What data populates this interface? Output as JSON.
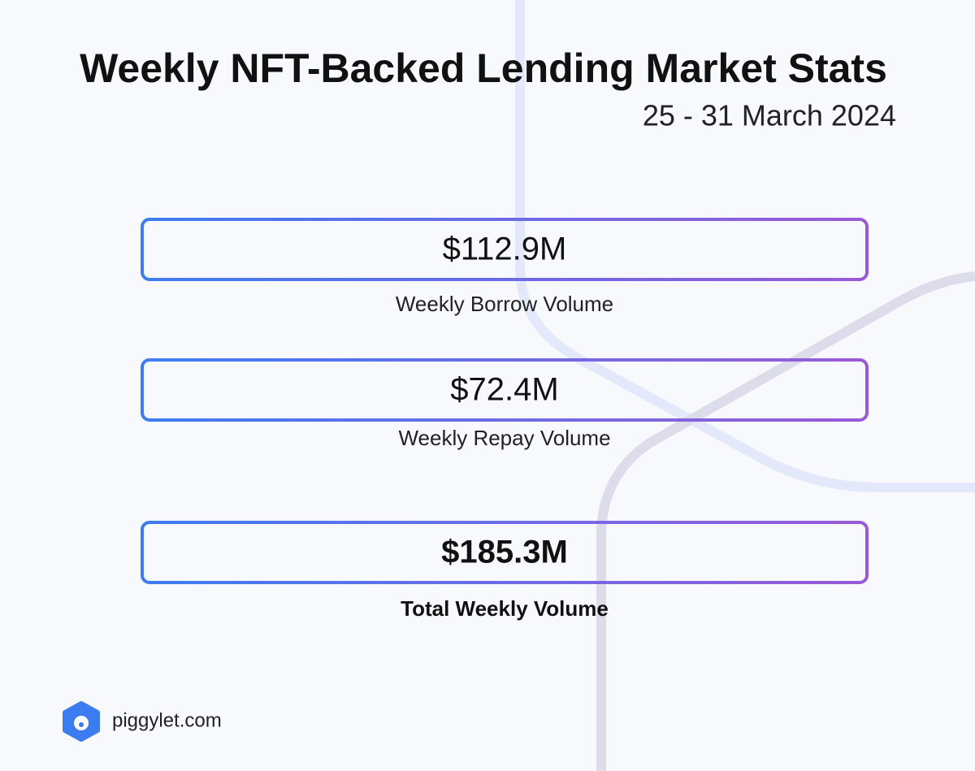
{
  "header": {
    "title": "Weekly NFT-Backed Lending Market Stats",
    "date": "25 - 31 March 2024"
  },
  "stats": [
    {
      "value": "$112.9M",
      "label": "Weekly Borrow Volume"
    },
    {
      "value": "$72.4M",
      "label": "Weekly Repay Volume"
    },
    {
      "value": "$185.3M",
      "label": "Total Weekly Volume"
    }
  ],
  "footer": {
    "brand": "piggylet.com"
  }
}
